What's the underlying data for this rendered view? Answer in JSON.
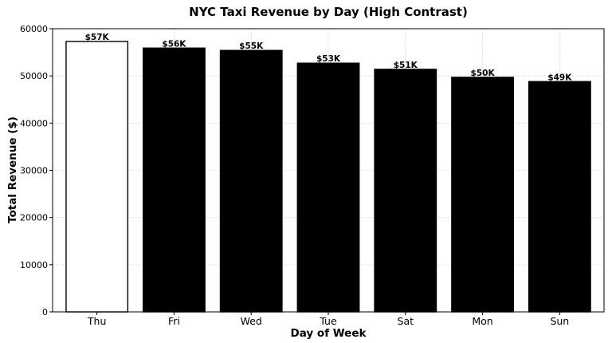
{
  "chart_data": {
    "type": "bar",
    "title": "NYC Taxi Revenue by Day (High Contrast)",
    "xlabel": "Day of Week",
    "ylabel": "Total Revenue ($)",
    "categories": [
      "Thu",
      "Fri",
      "Wed",
      "Tue",
      "Sat",
      "Mon",
      "Sun"
    ],
    "values": [
      57300,
      55900,
      55400,
      52700,
      51400,
      49700,
      48800
    ],
    "data_labels": [
      "$57K",
      "$56K",
      "$55K",
      "$53K",
      "$51K",
      "$50K",
      "$49K"
    ],
    "bar_fills": [
      "#ffffff",
      "#000000",
      "#000000",
      "#000000",
      "#000000",
      "#000000",
      "#000000"
    ],
    "bar_edge_color": "#000000",
    "ylim": [
      0,
      60000
    ],
    "yticks": [
      0,
      10000,
      20000,
      30000,
      40000,
      50000,
      60000
    ],
    "grid": true,
    "legend": "none"
  }
}
